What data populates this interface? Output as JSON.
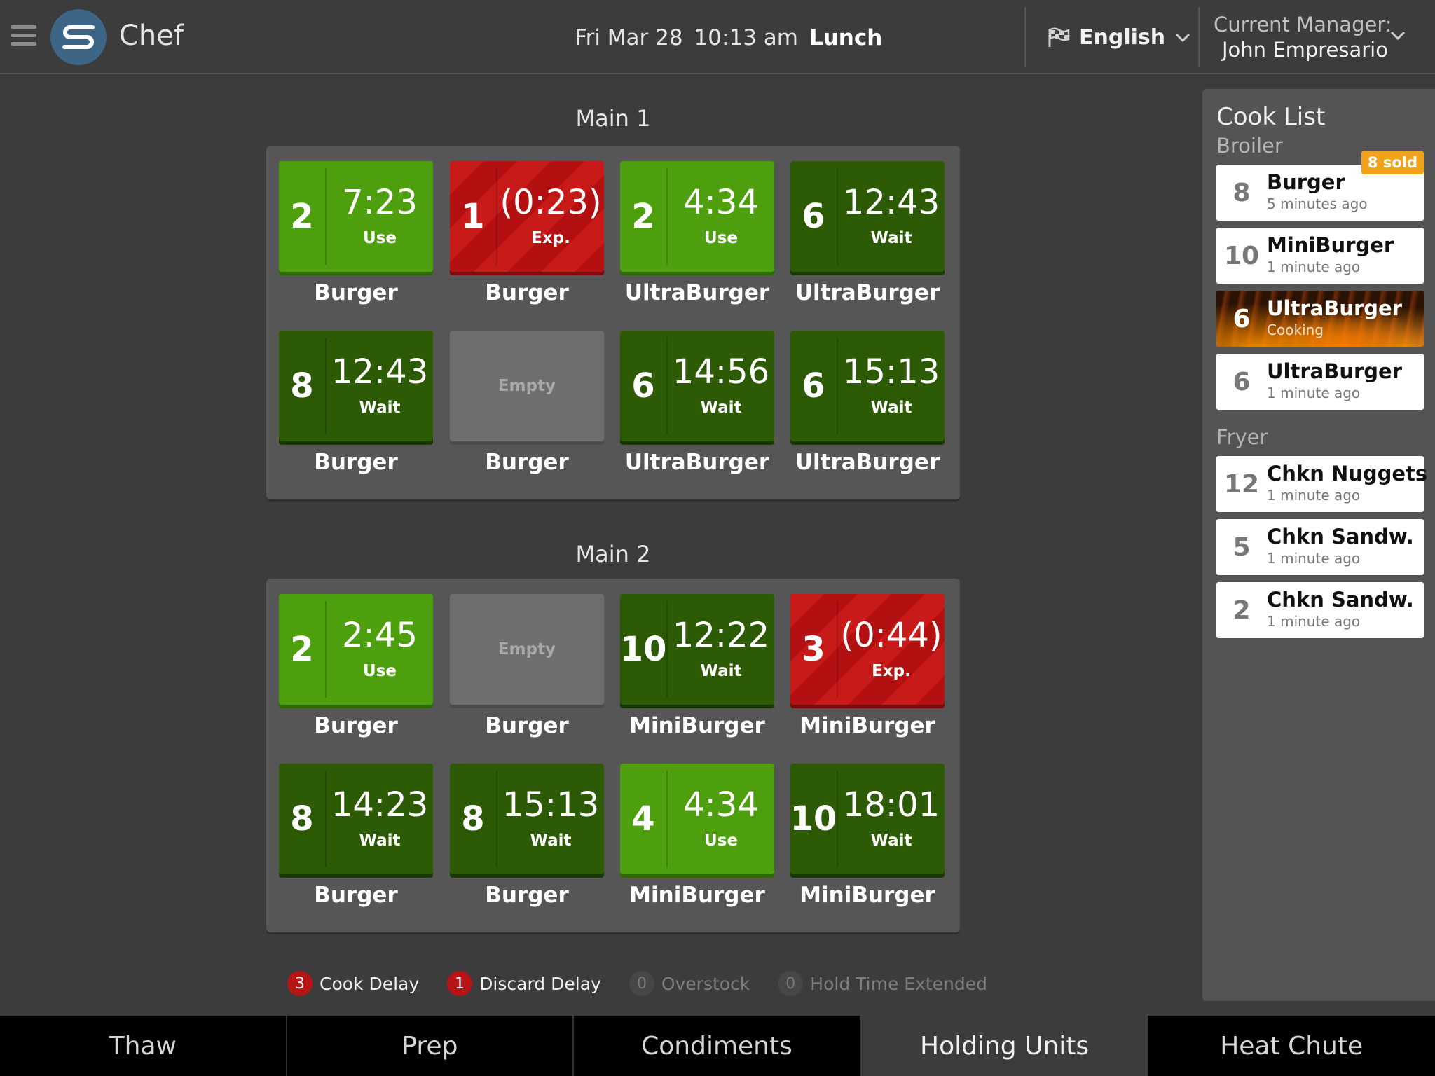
{
  "header": {
    "app_name": "Chef",
    "logo_text": "S",
    "date": "Fri Mar 28",
    "time": "10:13 am",
    "daypart": "Lunch",
    "language": "English",
    "manager_label": "Current Manager:",
    "manager_name": "John Empresario"
  },
  "units": [
    {
      "title": "Main 1",
      "slots": [
        {
          "count": "2",
          "time": "7:23",
          "status": "Use",
          "state": "use",
          "product": "Burger"
        },
        {
          "count": "1",
          "time": "(0:23)",
          "status": "Exp.",
          "state": "exp",
          "product": "Burger"
        },
        {
          "count": "2",
          "time": "4:34",
          "status": "Use",
          "state": "use",
          "product": "UltraBurger"
        },
        {
          "count": "6",
          "time": "12:43",
          "status": "Wait",
          "state": "wait",
          "product": "UltraBurger"
        },
        {
          "count": "8",
          "time": "12:43",
          "status": "Wait",
          "state": "wait",
          "product": "Burger"
        },
        {
          "state": "empty",
          "empty_label": "Empty",
          "product": "Burger"
        },
        {
          "count": "6",
          "time": "14:56",
          "status": "Wait",
          "state": "wait",
          "product": "UltraBurger"
        },
        {
          "count": "6",
          "time": "15:13",
          "status": "Wait",
          "state": "wait",
          "product": "UltraBurger"
        }
      ]
    },
    {
      "title": "Main 2",
      "slots": [
        {
          "count": "2",
          "time": "2:45",
          "status": "Use",
          "state": "use",
          "product": "Burger"
        },
        {
          "state": "empty",
          "empty_label": "Empty",
          "product": "Burger"
        },
        {
          "count": "10",
          "time": "12:22",
          "status": "Wait",
          "state": "wait",
          "product": "MiniBurger"
        },
        {
          "count": "3",
          "time": "(0:44)",
          "status": "Exp.",
          "state": "exp",
          "product": "MiniBurger"
        },
        {
          "count": "8",
          "time": "14:23",
          "status": "Wait",
          "state": "wait",
          "product": "Burger"
        },
        {
          "count": "8",
          "time": "15:13",
          "status": "Wait",
          "state": "wait",
          "product": "Burger"
        },
        {
          "count": "4",
          "time": "4:34",
          "status": "Use",
          "state": "use",
          "product": "MiniBurger"
        },
        {
          "count": "10",
          "time": "18:01",
          "status": "Wait",
          "state": "wait",
          "product": "MiniBurger"
        }
      ]
    }
  ],
  "legend": [
    {
      "count": "3",
      "label": "Cook Delay",
      "active": true
    },
    {
      "count": "1",
      "label": "Discard Delay",
      "active": true
    },
    {
      "count": "0",
      "label": "Overstock",
      "active": false
    },
    {
      "count": "0",
      "label": "Hold Time Extended",
      "active": false
    }
  ],
  "cook_list": {
    "title": "Cook List",
    "sections": [
      {
        "name": "Broiler",
        "items": [
          {
            "qty": "8",
            "name": "Burger",
            "time": "5 minutes ago",
            "badge": "8 sold"
          },
          {
            "qty": "10",
            "name": "MiniBurger",
            "time": "1 minute ago"
          },
          {
            "qty": "6",
            "name": "UltraBurger",
            "time": "Cooking",
            "cooking": true
          },
          {
            "qty": "6",
            "name": "UltraBurger",
            "time": "1 minute ago"
          }
        ]
      },
      {
        "name": "Fryer",
        "items": [
          {
            "qty": "12",
            "name": "Chkn Nuggets",
            "time": "1 minute ago"
          },
          {
            "qty": "5",
            "name": "Chkn Sandw.",
            "time": "1 minute ago"
          },
          {
            "qty": "2",
            "name": "Chkn Sandw.",
            "time": "1 minute ago"
          }
        ]
      }
    ]
  },
  "tabs": [
    {
      "label": "Thaw",
      "active": false
    },
    {
      "label": "Prep",
      "active": false
    },
    {
      "label": "Condiments",
      "active": false
    },
    {
      "label": "Holding Units",
      "active": true
    },
    {
      "label": "Heat Chute",
      "active": false
    }
  ],
  "colors": {
    "use": "#4e9f0d",
    "wait": "#2c5a05",
    "expired": "#c91a1a",
    "empty": "#6e6e6e",
    "sold_badge": "#f0a21b",
    "logo": "#3d6585"
  }
}
